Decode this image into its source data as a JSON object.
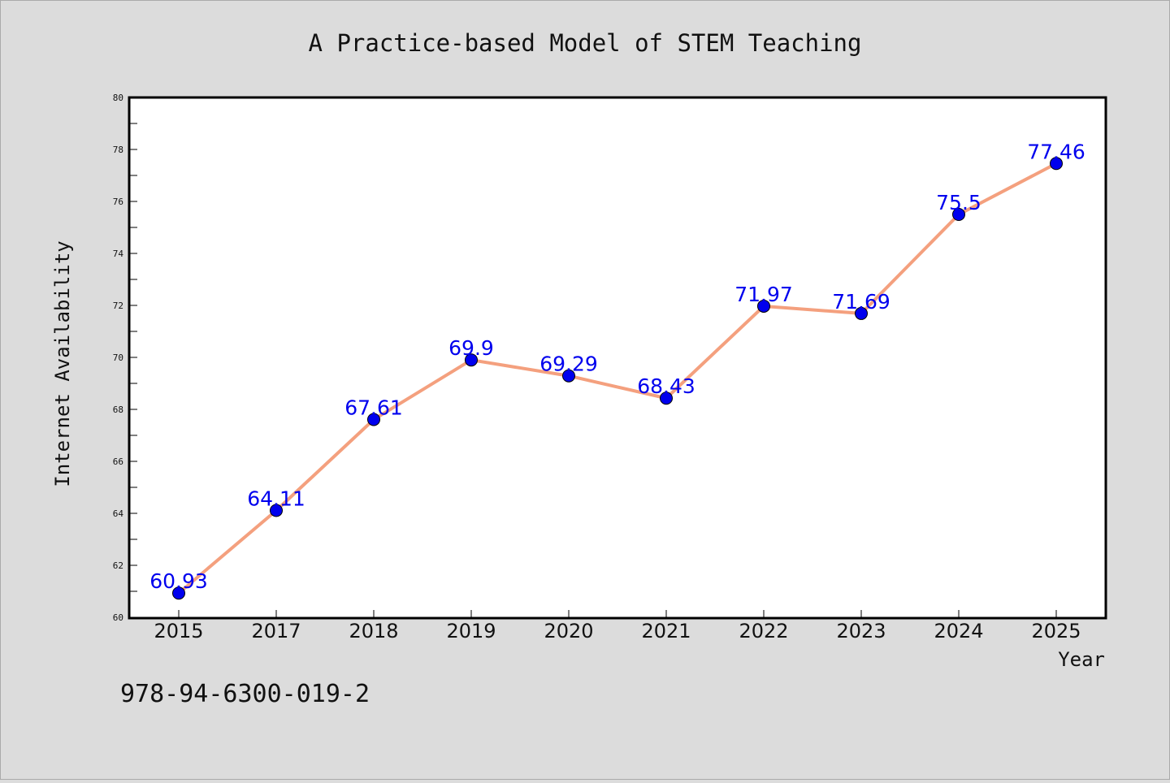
{
  "chart_data": {
    "type": "line",
    "title": "A Practice-based Model of STEM Teaching",
    "xlabel": "Year",
    "ylabel": "Internet Availability",
    "categories": [
      "2015",
      "2017",
      "2018",
      "2019",
      "2020",
      "2021",
      "2022",
      "2023",
      "2024",
      "2025"
    ],
    "series": [
      {
        "values": [
          60.93,
          64.11,
          67.61,
          69.9,
          69.29,
          68.43,
          71.97,
          71.69,
          75.5,
          77.46
        ]
      }
    ],
    "data_labels": [
      "60.93",
      "64.11",
      "67.61",
      "69.9",
      "69.29",
      "68.43",
      "71.97",
      "71.69",
      "75.5",
      "77.46"
    ],
    "ylim": [
      60,
      80
    ],
    "yticks": [
      60,
      62,
      64,
      66,
      68,
      70,
      72,
      74,
      76,
      78,
      80
    ],
    "grid": false,
    "line_color": "#f4a07e",
    "marker_color": "#0000ee",
    "label_color": "#0000ee"
  },
  "footer_text": "978-94-6300-019-2"
}
